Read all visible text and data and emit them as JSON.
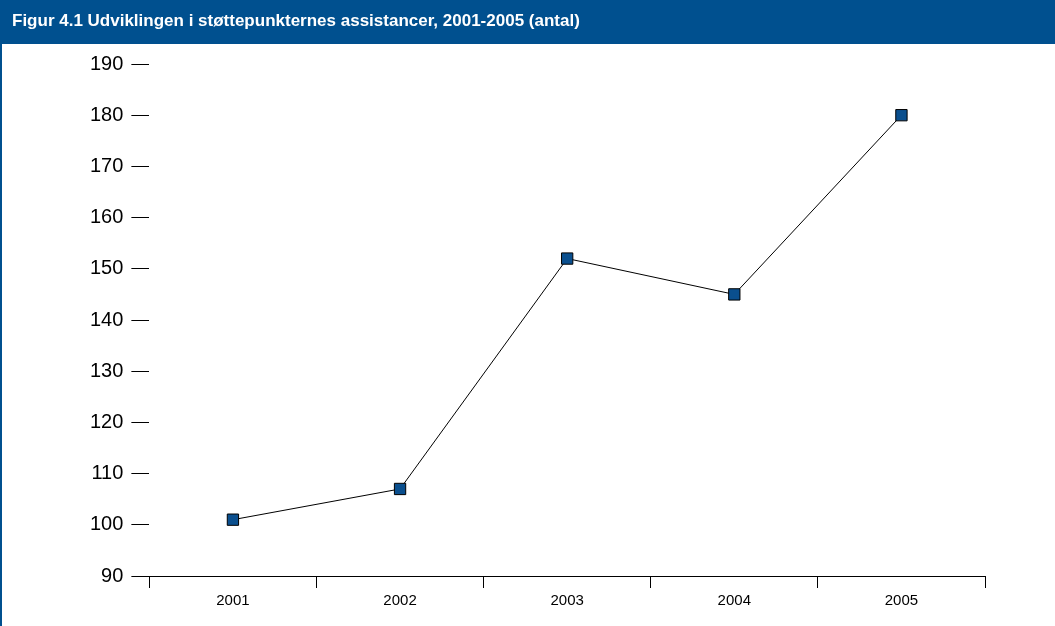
{
  "chart_data": {
    "type": "line",
    "title": "Figur 4.1 Udviklingen i støttepunkternes assistancer, 2001-2005 (antal)",
    "categories": [
      "2001",
      "2002",
      "2003",
      "2004",
      "2005"
    ],
    "series": [
      {
        "color": "#0a4f8e",
        "values": [
          101,
          107,
          152,
          145,
          180
        ]
      }
    ],
    "ylim": [
      90,
      190
    ],
    "yticks": [
      90,
      100,
      110,
      120,
      130,
      140,
      150,
      160,
      170,
      180,
      190
    ],
    "grid": false,
    "legend": false,
    "marker": "square",
    "line_style": "solid"
  }
}
